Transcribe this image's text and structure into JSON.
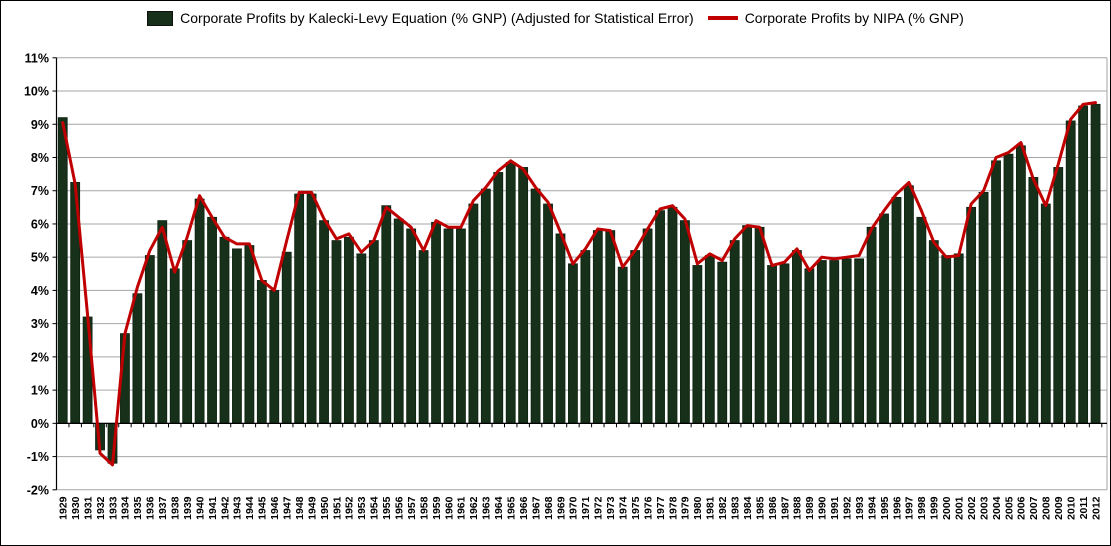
{
  "window": {
    "background": "#ffffff",
    "border_color": "#000000"
  },
  "legend": {
    "items": [
      {
        "label": "Corporate Profits by Kalecki-Levy Equation (% GNP) (Adjusted for Statistical Error)",
        "marker": "square",
        "color": "#163019"
      },
      {
        "label": "Corporate Profits by NIPA (% GNP)",
        "marker": "line",
        "color": "#c00000"
      }
    ]
  },
  "chart_data": {
    "type": "combo",
    "title": "",
    "categories": [
      "1929",
      "1930",
      "1931",
      "1932",
      "1933",
      "1934",
      "1935",
      "1936",
      "1937",
      "1938",
      "1939",
      "1940",
      "1941",
      "1942",
      "1943",
      "1944",
      "1945",
      "1946",
      "1947",
      "1948",
      "1949",
      "1950",
      "1951",
      "1952",
      "1953",
      "1954",
      "1955",
      "1956",
      "1957",
      "1958",
      "1959",
      "1960",
      "1961",
      "1962",
      "1963",
      "1964",
      "1965",
      "1966",
      "1967",
      "1968",
      "1969",
      "1970",
      "1971",
      "1972",
      "1973",
      "1974",
      "1975",
      "1976",
      "1977",
      "1978",
      "1979",
      "1980",
      "1981",
      "1982",
      "1983",
      "1984",
      "1985",
      "1986",
      "1987",
      "1988",
      "1989",
      "1990",
      "1991",
      "1992",
      "1993",
      "1994",
      "1995",
      "1996",
      "1997",
      "1998",
      "1999",
      "2000",
      "2001",
      "2002",
      "2003",
      "2004",
      "2005",
      "2006",
      "2007",
      "2008",
      "2009",
      "2010",
      "2011",
      "2012"
    ],
    "series": [
      {
        "name": "Corporate Profits by Kalecki-Levy Equation (% GNP) (Adjusted for Statistical Error)",
        "type": "bar",
        "color": "#163019",
        "values": [
          9.2,
          7.25,
          3.2,
          -0.8,
          -1.2,
          2.7,
          3.9,
          5.05,
          6.1,
          4.65,
          5.5,
          6.75,
          6.2,
          5.6,
          5.25,
          5.35,
          4.3,
          4.0,
          5.15,
          6.9,
          6.9,
          6.1,
          5.5,
          5.6,
          5.1,
          5.5,
          6.55,
          6.15,
          5.85,
          5.2,
          6.05,
          5.85,
          5.85,
          6.6,
          7.05,
          7.55,
          7.85,
          7.7,
          7.05,
          6.6,
          5.7,
          4.8,
          5.2,
          5.8,
          5.8,
          4.7,
          5.2,
          5.85,
          6.4,
          6.5,
          6.1,
          4.75,
          5.05,
          4.85,
          5.5,
          5.95,
          5.9,
          4.75,
          4.8,
          5.2,
          4.65,
          4.9,
          4.9,
          4.95,
          4.95,
          5.9,
          6.3,
          6.8,
          7.15,
          6.2,
          5.5,
          5.05,
          5.1,
          6.5,
          6.95,
          7.9,
          8.1,
          8.35,
          7.4,
          6.6,
          7.7,
          9.1,
          9.55,
          9.6
        ]
      },
      {
        "name": "Corporate Profits by NIPA (% GNP)",
        "type": "line",
        "color": "#c00000",
        "values": [
          9.05,
          7.2,
          3.25,
          -0.9,
          -1.25,
          2.7,
          4.1,
          5.2,
          5.9,
          4.55,
          5.6,
          6.85,
          6.2,
          5.6,
          5.4,
          5.4,
          4.3,
          4.0,
          5.5,
          6.95,
          6.95,
          6.15,
          5.55,
          5.7,
          5.15,
          5.5,
          6.5,
          6.2,
          5.9,
          5.2,
          6.1,
          5.9,
          5.9,
          6.7,
          7.1,
          7.6,
          7.9,
          7.65,
          7.1,
          6.65,
          5.75,
          4.8,
          5.25,
          5.85,
          5.8,
          4.7,
          5.2,
          5.85,
          6.45,
          6.55,
          6.15,
          4.8,
          5.1,
          4.9,
          5.55,
          5.95,
          5.9,
          4.75,
          4.85,
          5.25,
          4.6,
          5.0,
          4.95,
          5.0,
          5.05,
          5.85,
          6.4,
          6.9,
          7.25,
          6.4,
          5.45,
          5.0,
          5.05,
          6.6,
          7.0,
          8.0,
          8.15,
          8.45,
          7.35,
          6.55,
          7.8,
          9.15,
          9.6,
          9.65
        ]
      }
    ],
    "ylim": [
      -2,
      11
    ],
    "y_ticks": [
      {
        "value": 11,
        "label": "11%"
      },
      {
        "value": 10,
        "label": "10%"
      },
      {
        "value": 9,
        "label": "9%"
      },
      {
        "value": 8,
        "label": "8%"
      },
      {
        "value": 7,
        "label": "7%"
      },
      {
        "value": 6,
        "label": "6%"
      },
      {
        "value": 5,
        "label": "5%"
      },
      {
        "value": 4,
        "label": "4%"
      },
      {
        "value": 3,
        "label": "3%"
      },
      {
        "value": 2,
        "label": "2%"
      },
      {
        "value": 1,
        "label": "1%"
      },
      {
        "value": 0,
        "label": "0%"
      },
      {
        "value": -1,
        "label": "-1%"
      },
      {
        "value": -2,
        "label": "-2%"
      }
    ],
    "grid": true,
    "gridline_color": "#a6a6a6",
    "axis_color": "#000000",
    "legend_position": "top"
  }
}
